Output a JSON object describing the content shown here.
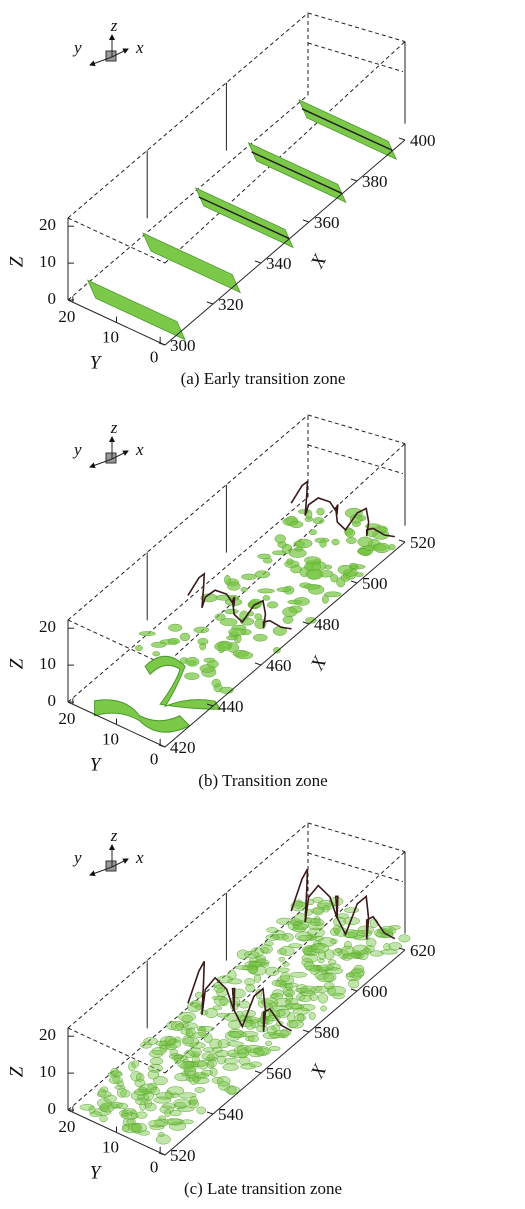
{
  "panels": [
    {
      "caption": "(a) Early transition zone",
      "axes": {
        "x": "X",
        "y": "Y",
        "z": "Z"
      },
      "triad": {
        "x": "x",
        "y": "y",
        "z": "z"
      },
      "x_ticks": [
        300,
        320,
        340,
        360,
        380,
        400
      ],
      "y_ticks": [
        20,
        10,
        0
      ],
      "z_ticks": [
        0,
        10,
        20
      ]
    },
    {
      "caption": "(b) Transition zone",
      "axes": {
        "x": "X",
        "y": "Y",
        "z": "Z"
      },
      "triad": {
        "x": "x",
        "y": "y",
        "z": "z"
      },
      "x_ticks": [
        420,
        440,
        460,
        480,
        500,
        520
      ],
      "y_ticks": [
        20,
        10,
        0
      ],
      "z_ticks": [
        0,
        10,
        20
      ]
    },
    {
      "caption": "(c) Late transition zone",
      "axes": {
        "x": "X",
        "y": "Y",
        "z": "Z"
      },
      "triad": {
        "x": "x",
        "y": "y",
        "z": "z"
      },
      "x_ticks": [
        520,
        540,
        560,
        580,
        600,
        620
      ],
      "y_ticks": [
        20,
        10,
        0
      ],
      "z_ticks": [
        0,
        10,
        20
      ]
    }
  ]
}
